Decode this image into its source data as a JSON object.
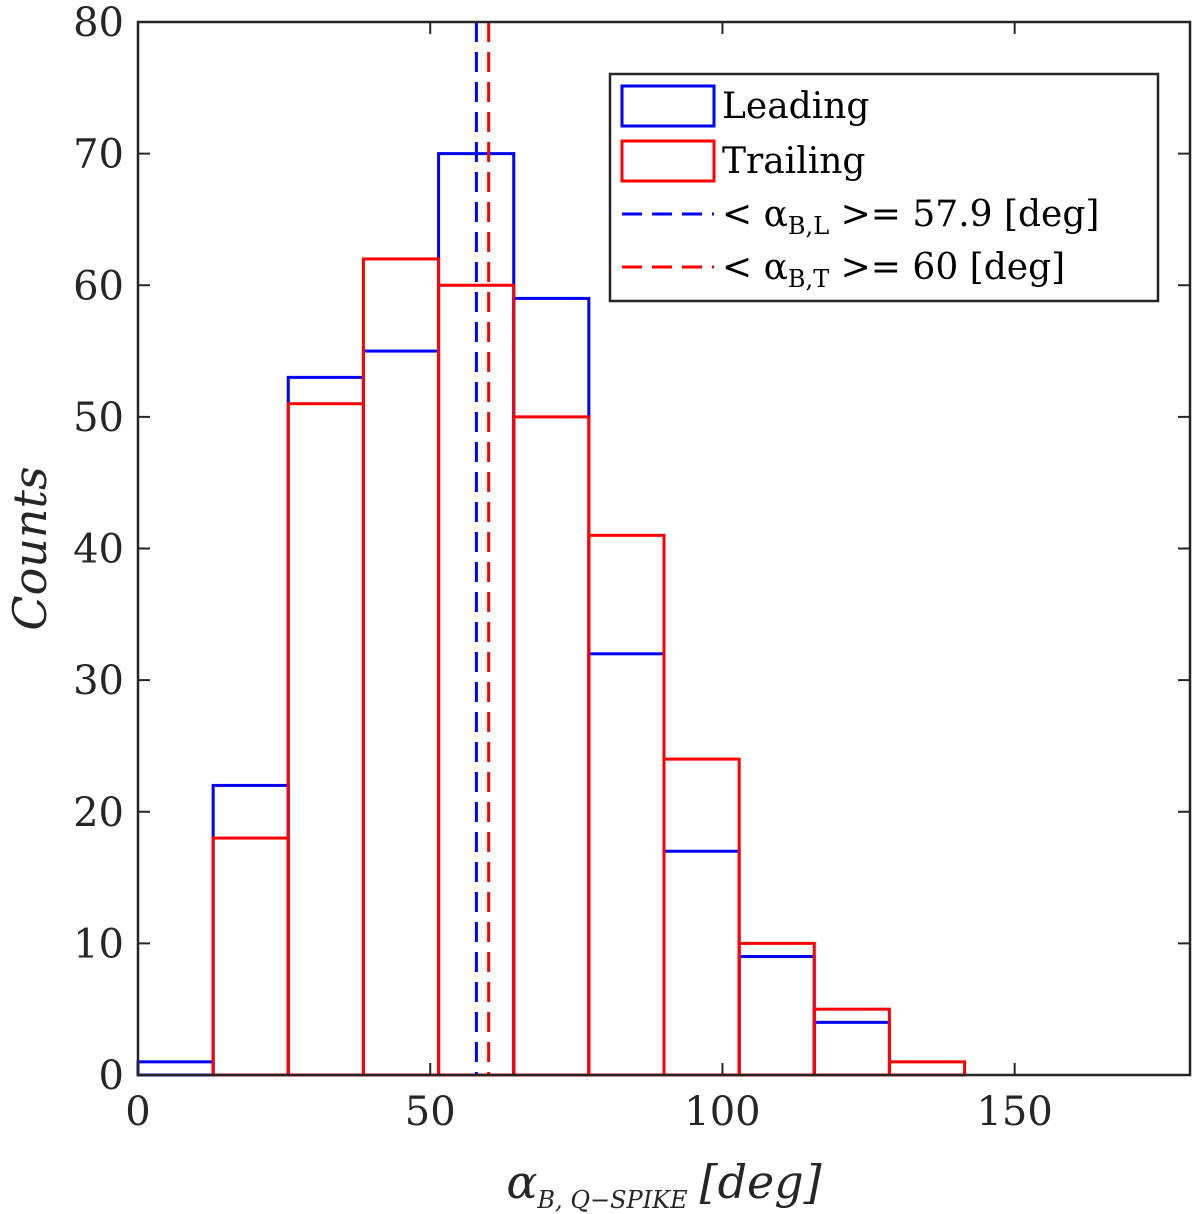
{
  "chart_data": {
    "type": "bar",
    "subtype": "histogram-stairs",
    "xlim": [
      0,
      180
    ],
    "ylim": [
      0,
      80
    ],
    "xticks": [
      "0",
      "50",
      "100",
      "150"
    ],
    "yticks": [
      "0",
      "10",
      "20",
      "30",
      "40",
      "50",
      "60",
      "70",
      "80"
    ],
    "xlabel": {
      "main": "α",
      "sub": "B, Q−SPIKE",
      "unit": "[deg]"
    },
    "ylabel": "Counts",
    "bin_edges": [
      0,
      12.86,
      25.71,
      38.57,
      51.43,
      64.29,
      77.14,
      90,
      102.86,
      115.71,
      128.57,
      141.43,
      154.29,
      167.14,
      180
    ],
    "series": [
      {
        "name": "Leading",
        "color": "#0000ff",
        "values": [
          1,
          22,
          53,
          55,
          70,
          59,
          32,
          17,
          9,
          4,
          0,
          0,
          0,
          0
        ]
      },
      {
        "name": "Trailing",
        "color": "#ff0000",
        "values": [
          0,
          18,
          51,
          62,
          60,
          50,
          41,
          24,
          10,
          5,
          1,
          0,
          0,
          0
        ]
      }
    ],
    "mean_lines": [
      {
        "label": "< α_B,L >= 57.9 [deg]",
        "label_main": "< α",
        "label_sub": "B,L",
        "label_rest": " >= 57.9 [deg]",
        "x": 57.9,
        "color": "#0000ff"
      },
      {
        "label": "< α_B,T >= 60 [deg]",
        "label_main": "< α",
        "label_sub": "B,T",
        "label_rest": " >= 60 [deg]",
        "x": 60,
        "color": "#ff0000"
      }
    ],
    "legend": {
      "position": "top-right",
      "entries": [
        "Leading",
        "Trailing",
        "< α_B,L >= 57.9 [deg]",
        "< α_B,T >= 60 [deg]"
      ]
    }
  }
}
